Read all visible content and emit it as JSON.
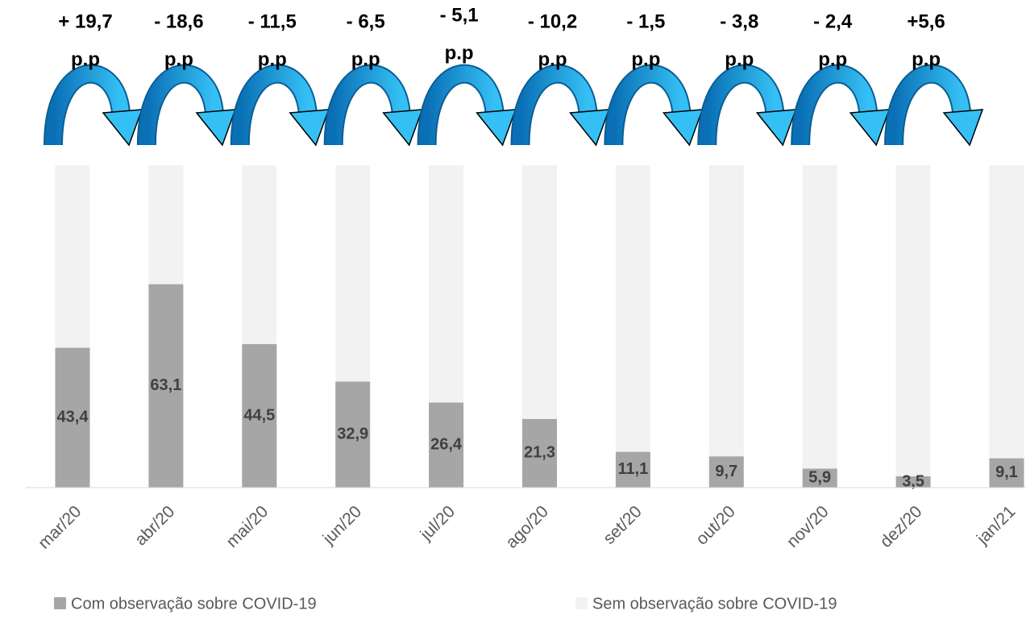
{
  "chart_data": {
    "type": "stacked_bar",
    "categories": [
      "mar/20",
      "abr/20",
      "mai/20",
      "jun/20",
      "jul/20",
      "ago/20",
      "set/20",
      "out/20",
      "nov/20",
      "dez/20",
      "jan/21"
    ],
    "series": [
      {
        "name": "Com observação sobre COVID-19",
        "color": "#a6a6a6",
        "values": [
          43.4,
          63.1,
          44.5,
          32.9,
          26.4,
          21.3,
          11.1,
          9.7,
          5.9,
          3.5,
          9.1
        ],
        "value_labels": [
          "43,4",
          "63,1",
          "44,5",
          "32,9",
          "26,4",
          "21,3",
          "11,1",
          "9,7",
          "5,9",
          "3,5",
          "9,1"
        ]
      },
      {
        "name": "Sem observação sobre COVID-19",
        "color": "#f2f2f2",
        "values": [
          56.6,
          36.9,
          55.5,
          67.1,
          73.6,
          78.7,
          88.9,
          90.3,
          94.1,
          96.5,
          90.9
        ]
      }
    ],
    "ylim": [
      0,
      100
    ],
    "annotations": [
      {
        "change": "+ 19,7",
        "unit": "p.p"
      },
      {
        "change": "- 18,6",
        "unit": "p.p"
      },
      {
        "change": "- 11,5",
        "unit": "p.p"
      },
      {
        "change": "- 6,5",
        "unit": "p.p"
      },
      {
        "change": "- 5,1",
        "unit": "p.p"
      },
      {
        "change": "- 10,2",
        "unit": "p.p"
      },
      {
        "change": "- 1,5",
        "unit": "p.p"
      },
      {
        "change": "- 3,8",
        "unit": "p.p"
      },
      {
        "change": "- 2,4",
        "unit": "p.p"
      },
      {
        "change": "+5,6",
        "unit": "p.p"
      }
    ],
    "legend": "bottom"
  }
}
